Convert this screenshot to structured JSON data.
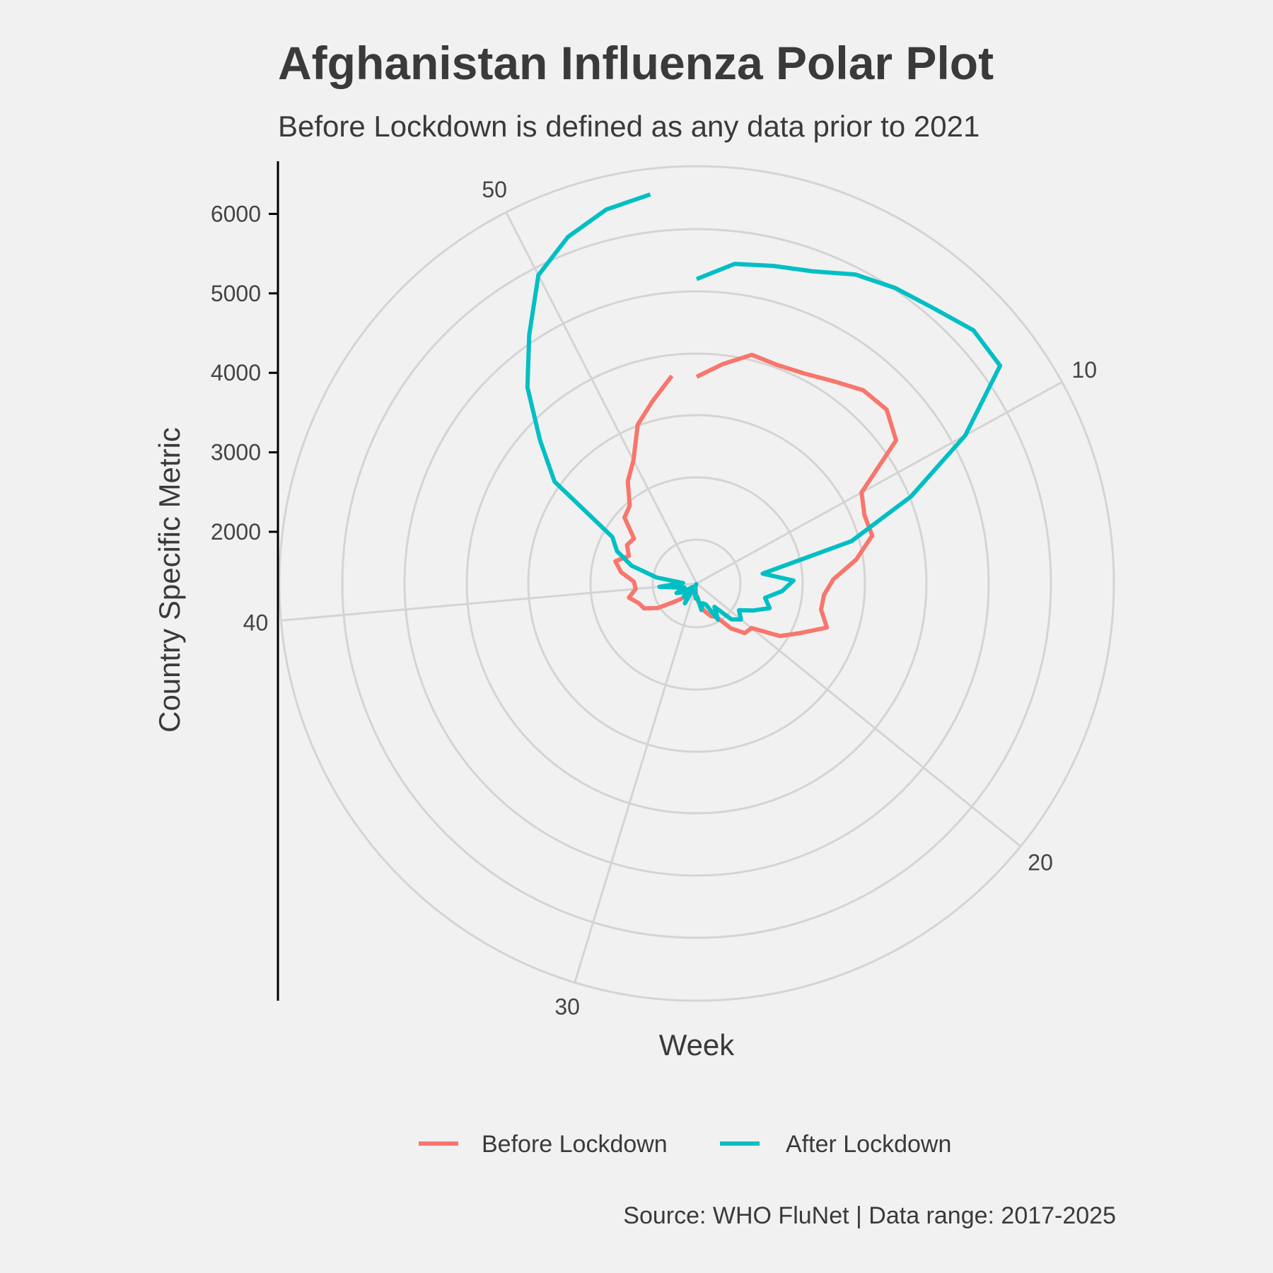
{
  "chart_data": {
    "type": "line",
    "coord": "polar",
    "title": "Afghanistan Influenza Polar Plot",
    "subtitle": "Before Lockdown is defined as any data prior to 2021",
    "xlabel": "Week",
    "ylabel": "Country Specific Metric",
    "caption": "Source: WHO FluNet | Data range: 2017-2025",
    "x_range": [
      1,
      53
    ],
    "x_ticks": [
      "10",
      "20",
      "30",
      "40",
      "50"
    ],
    "y_ticks": [
      "2000",
      "3000",
      "4000",
      "5000",
      "6000"
    ],
    "y_range": [
      1350,
      6600
    ],
    "grid": true,
    "legend_position": "bottom",
    "series": [
      {
        "name": "Before Lockdown",
        "color": "#F8766D",
        "values": [
          3950,
          4130,
          4310,
          4280,
          4320,
          4420,
          4560,
          4590,
          4440,
          3720,
          3630,
          3640,
          3380,
          3070,
          2960,
          2950,
          3080,
          2800,
          2590,
          2240,
          2220,
          2060,
          1840,
          1800,
          1720,
          1650,
          1560,
          1480,
          1420,
          1460,
          1400,
          1420,
          1520,
          1610,
          1720,
          1930,
          2080,
          2120,
          2220,
          2120,
          2140,
          2310,
          2410,
          2270,
          2350,
          2320,
          2580,
          2640,
          2900,
          3090,
          3480,
          3710,
          3980
        ]
      },
      {
        "name": "After Lockdown",
        "color": "#00BFC4",
        "values": [
          5180,
          5400,
          5460,
          5540,
          5720,
          5830,
          5920,
          6070,
          6050,
          5210,
          4260,
          3370,
          2190,
          2570,
          2430,
          2230,
          2320,
          2140,
          1980,
          2070,
          1980,
          1720,
          1880,
          1640,
          1610,
          1690,
          1520,
          1540,
          1470,
          1430,
          1360,
          1640,
          1510,
          1580,
          1420,
          1560,
          1630,
          1510,
          1600,
          1820,
          1520,
          1860,
          2200,
          2430,
          2560,
          3550,
          4020,
          4610,
          5120,
          5710,
          6000,
          6190,
          6280
        ]
      }
    ]
  }
}
